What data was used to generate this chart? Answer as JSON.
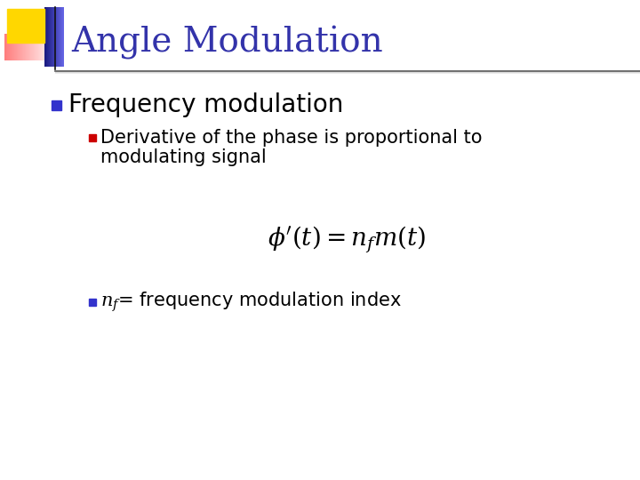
{
  "title": "Angle Modulation",
  "title_color": "#3333AA",
  "title_fontsize": 28,
  "bg_color": "#FFFFFF",
  "bullet1_text": "Frequency modulation",
  "bullet1_color": "#000000",
  "bullet1_fontsize": 20,
  "bullet1_marker_color": "#3333CC",
  "sub_bullet1_line1": "Derivative of the phase is proportional to",
  "sub_bullet1_line2": "modulating signal",
  "sub_bullet1_color": "#000000",
  "sub_bullet1_fontsize": 15,
  "sub_bullet1_marker_color": "#CC0000",
  "formula_fontsize": 20,
  "formula_color": "#000000",
  "bullet2_color": "#000000",
  "bullet2_fontsize": 15,
  "bullet2_marker_color": "#3333CC",
  "header_line_color": "#333333",
  "deco_yellow": "#FFD700",
  "deco_red_light": "#FF8888",
  "deco_red_dark": "#CC2222",
  "deco_blue_light": "#8888FF",
  "deco_blue_dark": "#2222AA"
}
